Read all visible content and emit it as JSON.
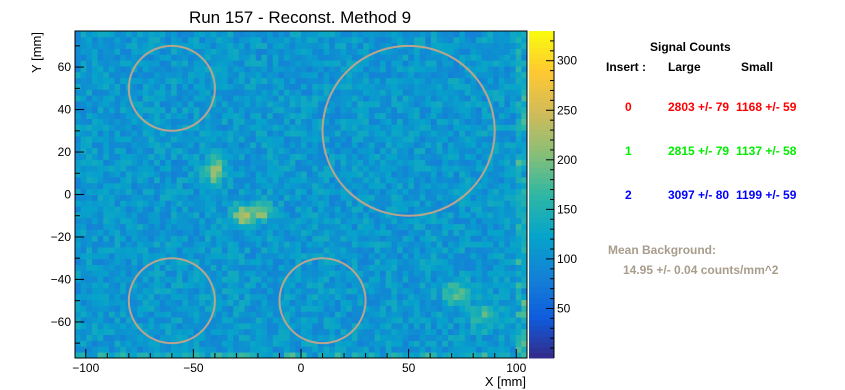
{
  "chart_data": {
    "type": "heatmap",
    "title": "Run 157 - Reconst. Method 9",
    "xlabel": "X [mm]",
    "ylabel": "Y [mm]",
    "xlim": [
      -105,
      105
    ],
    "ylim": [
      -77,
      77
    ],
    "xticks": [
      -100,
      -50,
      0,
      50,
      100
    ],
    "xtick_labels": [
      "−100",
      "−50",
      "0",
      "50",
      "100"
    ],
    "yticks": [
      -60,
      -40,
      -20,
      0,
      20,
      40,
      60
    ],
    "ytick_labels": [
      "−60",
      "−40",
      "−20",
      "0",
      "20",
      "40",
      "60"
    ],
    "zlim": [
      0,
      330
    ],
    "zticks": [
      50,
      100,
      150,
      200,
      250,
      300
    ],
    "colormap": [
      "#352a87",
      "#0f5cdd",
      "#1481d6",
      "#06a4ca",
      "#2eb7a4",
      "#87bf77",
      "#d1bb59",
      "#fec832",
      "#f9fb0e"
    ],
    "grid": false,
    "nbins": [
      80,
      56
    ],
    "background_level": 110,
    "hotspots": [
      {
        "x": -40,
        "y": 10,
        "sigma": 3,
        "amp": 120
      },
      {
        "x": -39,
        "y": 16,
        "sigma": 3,
        "amp": 60
      },
      {
        "x": -27,
        "y": -10,
        "sigma": 3.5,
        "amp": 110
      },
      {
        "x": -18,
        "y": -8,
        "sigma": 3,
        "amp": 90
      },
      {
        "x": 72,
        "y": -46,
        "sigma": 4,
        "amp": 70
      },
      {
        "x": 85,
        "y": -58,
        "sigma": 4,
        "amp": 60
      }
    ],
    "circles": [
      {
        "cx": -60,
        "cy": 50,
        "r": 20
      },
      {
        "cx": 50,
        "cy": 30,
        "r": 40
      },
      {
        "cx": -60,
        "cy": -50,
        "r": 20
      },
      {
        "cx": 10,
        "cy": -50,
        "r": 20
      }
    ],
    "circle_color": "#b9a48e"
  },
  "legend": {
    "title": "Signal Counts",
    "insert_header": "Insert :",
    "large_header": "Large",
    "small_header": "Small",
    "rows": [
      {
        "index": "0",
        "large": "2803 +/- 79",
        "small": "1168 +/- 59",
        "color": "#ff0000"
      },
      {
        "index": "1",
        "large": "2815 +/- 79",
        "small": "1137 +/- 58",
        "color": "#00ee00"
      },
      {
        "index": "2",
        "large": "3097 +/- 80",
        "small": "1199 +/- 59",
        "color": "#0000ff"
      }
    ],
    "background_title": "Mean Background:",
    "background_value": "14.95 +/- 0.04 counts/mm^2",
    "background_color": "#a89c8c"
  }
}
